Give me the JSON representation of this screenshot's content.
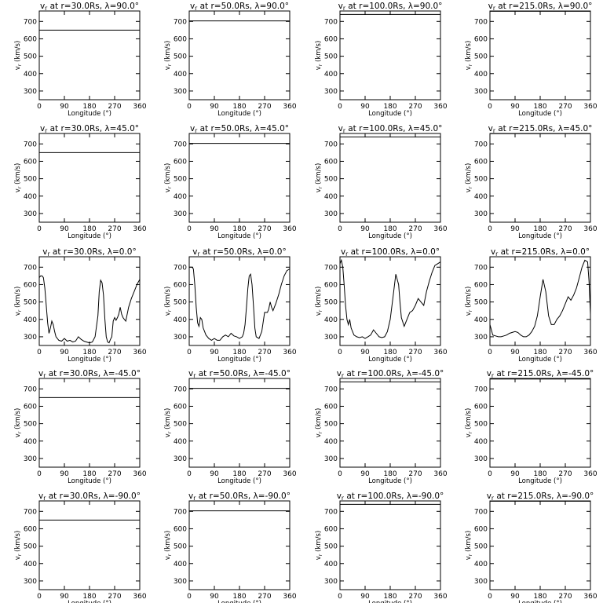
{
  "chart_data": {
    "type": "line",
    "layout": {
      "rows": 5,
      "cols": 4
    },
    "xlabel": "Longitude (°)",
    "ylabel": "v_r (km/s)",
    "xlim": [
      0,
      360
    ],
    "ylim": [
      250,
      760
    ],
    "xticks": [
      0,
      90,
      180,
      270,
      360
    ],
    "yticks": [
      300,
      400,
      500,
      600,
      700
    ],
    "line_color": "#000000",
    "panels": [
      {
        "title": "v_r at r=30.0Rs, λ=90.0°",
        "x": [
          0,
          360
        ],
        "y": [
          650,
          650
        ]
      },
      {
        "title": "v_r at r=50.0Rs, λ=90.0°",
        "x": [
          0,
          360
        ],
        "y": [
          703,
          703
        ]
      },
      {
        "title": "v_r at r=100.0Rs, λ=90.0°",
        "x": [
          0,
          360
        ],
        "y": [
          740,
          740
        ]
      },
      {
        "title": "v_r at r=215.0Rs, λ=90.0°",
        "x": [
          0,
          360
        ],
        "y": [
          758,
          758
        ]
      },
      {
        "title": "v_r at r=30.0Rs, λ=45.0°",
        "x": [
          0,
          360
        ],
        "y": [
          650,
          650
        ]
      },
      {
        "title": "v_r at r=50.0Rs, λ=45.0°",
        "x": [
          0,
          360
        ],
        "y": [
          703,
          703
        ]
      },
      {
        "title": "v_r at r=100.0Rs, λ=45.0°",
        "x": [
          0,
          360
        ],
        "y": [
          740,
          740
        ]
      },
      {
        "title": "v_r at r=215.0Rs, λ=45.0°",
        "x": [
          0,
          360
        ],
        "y": [
          759,
          759
        ]
      },
      {
        "title": "v_r at r=30.0Rs, λ=0.0°",
        "x": [
          0,
          5,
          10,
          15,
          20,
          25,
          30,
          35,
          40,
          45,
          50,
          55,
          60,
          70,
          80,
          90,
          100,
          110,
          120,
          130,
          140,
          150,
          160,
          170,
          180,
          190,
          200,
          210,
          215,
          220,
          225,
          230,
          235,
          240,
          245,
          250,
          255,
          260,
          265,
          270,
          275,
          280,
          285,
          290,
          295,
          300,
          305,
          310,
          315,
          320,
          330,
          340,
          350,
          360
        ],
        "y": [
          640,
          650,
          650,
          640,
          580,
          480,
          380,
          320,
          350,
          390,
          370,
          330,
          300,
          280,
          275,
          290,
          275,
          280,
          270,
          275,
          300,
          285,
          275,
          270,
          265,
          270,
          300,
          420,
          560,
          625,
          610,
          540,
          400,
          300,
          270,
          265,
          285,
          300,
          390,
          410,
          395,
          410,
          430,
          470,
          430,
          410,
          400,
          390,
          430,
          470,
          520,
          560,
          600,
          630
        ]
      },
      {
        "title": "v_r at r=50.0Rs, λ=0.0°",
        "x": [
          0,
          10,
          15,
          20,
          25,
          30,
          35,
          40,
          45,
          50,
          55,
          60,
          70,
          80,
          90,
          100,
          110,
          120,
          130,
          140,
          150,
          160,
          170,
          180,
          190,
          195,
          200,
          205,
          210,
          215,
          220,
          225,
          230,
          235,
          240,
          250,
          260,
          270,
          280,
          285,
          290,
          295,
          300,
          310,
          320,
          330,
          340,
          350,
          360
        ],
        "y": [
          700,
          700,
          690,
          600,
          470,
          380,
          360,
          410,
          400,
          350,
          330,
          310,
          290,
          280,
          290,
          280,
          280,
          300,
          310,
          300,
          320,
          305,
          300,
          290,
          300,
          320,
          370,
          470,
          580,
          650,
          660,
          600,
          480,
          350,
          300,
          290,
          330,
          440,
          440,
          460,
          500,
          470,
          450,
          490,
          540,
          600,
          650,
          680,
          690
        ]
      },
      {
        "title": "v_r at r=100.0Rs, λ=0.0°",
        "x": [
          0,
          5,
          10,
          15,
          20,
          25,
          30,
          35,
          40,
          50,
          60,
          70,
          80,
          90,
          100,
          110,
          120,
          130,
          140,
          150,
          160,
          170,
          180,
          190,
          200,
          210,
          215,
          220,
          230,
          240,
          250,
          260,
          270,
          280,
          290,
          300,
          310,
          320,
          330,
          340,
          350,
          360
        ],
        "y": [
          720,
          740,
          700,
          600,
          480,
          400,
          370,
          400,
          350,
          310,
          300,
          295,
          300,
          290,
          300,
          310,
          340,
          320,
          300,
          295,
          300,
          330,
          400,
          530,
          660,
          600,
          500,
          410,
          360,
          400,
          440,
          450,
          480,
          520,
          500,
          480,
          560,
          620,
          670,
          710,
          720,
          730
        ]
      },
      {
        "title": "v_r at r=215.0Rs, λ=0.0°",
        "x": [
          0,
          10,
          20,
          30,
          40,
          50,
          60,
          70,
          80,
          90,
          100,
          110,
          120,
          130,
          140,
          150,
          160,
          170,
          180,
          190,
          200,
          210,
          220,
          230,
          240,
          250,
          260,
          270,
          280,
          290,
          300,
          310,
          320,
          330,
          340,
          350,
          355,
          360
        ],
        "y": [
          370,
          310,
          305,
          300,
          300,
          305,
          310,
          320,
          325,
          330,
          325,
          310,
          300,
          300,
          310,
          330,
          360,
          420,
          530,
          630,
          560,
          420,
          370,
          370,
          400,
          420,
          450,
          490,
          530,
          510,
          540,
          580,
          640,
          700,
          740,
          730,
          620,
          430
        ]
      },
      {
        "title": "v_r at r=30.0Rs, λ=-45.0°",
        "x": [
          0,
          360
        ],
        "y": [
          650,
          650
        ]
      },
      {
        "title": "v_r at r=50.0Rs, λ=-45.0°",
        "x": [
          0,
          360
        ],
        "y": [
          703,
          703
        ]
      },
      {
        "title": "v_r at r=100.0Rs, λ=-45.0°",
        "x": [
          0,
          360
        ],
        "y": [
          740,
          740
        ]
      },
      {
        "title": "v_r at r=215.0Rs, λ=-45.0°",
        "x": [
          0,
          360
        ],
        "y": [
          757,
          757
        ]
      },
      {
        "title": "v_r at r=30.0Rs, λ=-90.0°",
        "x": [
          0,
          360
        ],
        "y": [
          650,
          650
        ]
      },
      {
        "title": "v_r at r=50.0Rs, λ=-90.0°",
        "x": [
          0,
          360
        ],
        "y": [
          703,
          703
        ]
      },
      {
        "title": "v_r at r=100.0Rs, λ=-90.0°",
        "x": [
          0,
          360
        ],
        "y": [
          740,
          740
        ]
      },
      {
        "title": "v_r at r=215.0Rs, λ=-90.0°",
        "x": [
          0,
          360
        ],
        "y": [
          758,
          758
        ]
      }
    ]
  }
}
